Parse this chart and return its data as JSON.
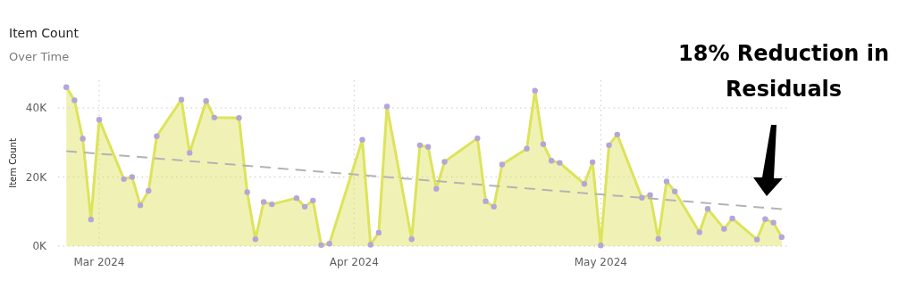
{
  "chart_data": {
    "type": "area",
    "title": "Item Count",
    "subtitle": "Over Time",
    "ylabel": "Item Count",
    "annotations": [
      "18% Reduction in Residuals"
    ],
    "xlim": [
      "2024-02-25",
      "2024-05-24"
    ],
    "xticks": [
      {
        "value": "2024-03-01",
        "label": "Mar 2024"
      },
      {
        "value": "2024-04-01",
        "label": "Apr 2024"
      },
      {
        "value": "2024-05-01",
        "label": "May 2024"
      }
    ],
    "ylim": [
      0,
      48000
    ],
    "yticks": [
      {
        "value": 0,
        "label": "0K"
      },
      {
        "value": 20000,
        "label": "20K"
      },
      {
        "value": 40000,
        "label": "40K"
      }
    ],
    "grid": true,
    "marker": "circle",
    "series": [
      {
        "color": "#dde35a",
        "x": [
          "2024-02-26",
          "2024-02-27",
          "2024-02-28",
          "2024-02-29",
          "2024-03-01",
          "2024-03-04",
          "2024-03-05",
          "2024-03-06",
          "2024-03-07",
          "2024-03-08",
          "2024-03-11",
          "2024-03-12",
          "2024-03-14",
          "2024-03-15",
          "2024-03-18",
          "2024-03-19",
          "2024-03-20",
          "2024-03-21",
          "2024-03-22",
          "2024-03-25",
          "2024-03-26",
          "2024-03-27",
          "2024-03-28",
          "2024-03-29",
          "2024-04-02",
          "2024-04-03",
          "2024-04-04",
          "2024-04-05",
          "2024-04-08",
          "2024-04-09",
          "2024-04-10",
          "2024-04-11",
          "2024-04-12",
          "2024-04-16",
          "2024-04-17",
          "2024-04-18",
          "2024-04-19",
          "2024-04-22",
          "2024-04-23",
          "2024-04-24",
          "2024-04-25",
          "2024-04-26",
          "2024-04-29",
          "2024-04-30",
          "2024-05-01",
          "2024-05-02",
          "2024-05-03",
          "2024-05-06",
          "2024-05-07",
          "2024-05-08",
          "2024-05-09",
          "2024-05-10",
          "2024-05-13",
          "2024-05-14",
          "2024-05-16",
          "2024-05-17",
          "2024-05-20",
          "2024-05-21",
          "2024-05-22",
          "2024-05-23"
        ],
        "values": [
          46000,
          42200,
          31100,
          7700,
          36600,
          19400,
          20000,
          11800,
          16000,
          31800,
          42400,
          27000,
          42000,
          37200,
          37100,
          15600,
          2000,
          12800,
          12100,
          13900,
          11400,
          13200,
          300,
          700,
          30800,
          400,
          3900,
          40400,
          2000,
          29200,
          28700,
          16600,
          24400,
          31200,
          13000,
          11400,
          23600,
          28200,
          45000,
          29500,
          24700,
          24100,
          18000,
          24300,
          200,
          29200,
          32300,
          14000,
          14800,
          2100,
          18700,
          15800,
          4000,
          10800,
          5000,
          8000,
          1900,
          7800,
          6800,
          2600
        ]
      },
      {
        "type": "line",
        "color": "#b3b3b3",
        "line_style": "dashed",
        "marker": "none",
        "x": [
          "2024-02-26",
          "2024-05-23"
        ],
        "values": [
          27500,
          10700
        ]
      }
    ]
  }
}
